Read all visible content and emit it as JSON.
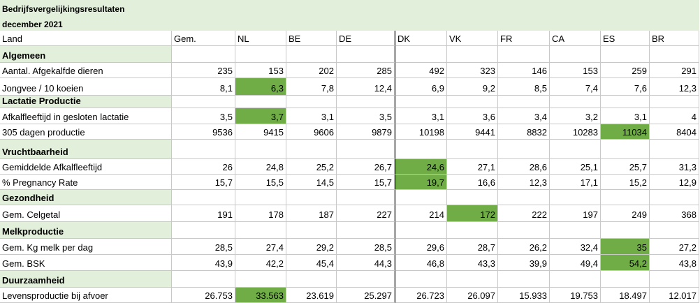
{
  "title": [
    "Bedrijfsvergelijkingsresultaten",
    "december 2021"
  ],
  "section_color": "#e2efda",
  "highlight_color": "#70ad47",
  "table": {
    "columns": [
      "Land",
      "Gem.",
      "NL",
      "BE",
      "DE",
      "DK",
      "VK",
      "FR",
      "CA",
      "ES",
      "BR"
    ],
    "rows": [
      {
        "section": "Algemeen"
      },
      {
        "label": "Aantal. Afgekalfde dieren",
        "cells": [
          "235",
          "153",
          "202",
          "285",
          "492",
          "323",
          "146",
          "153",
          "259",
          "291"
        ]
      },
      {
        "label": "Jongvee / 10 koeien",
        "cells": [
          "8,1",
          "6,3",
          "7,8",
          "12,4",
          "6,9",
          "9,2",
          "8,5",
          "7,4",
          "7,6",
          "12,3"
        ],
        "highlight": "NL"
      },
      {
        "section": "Lactatie Productie"
      },
      {
        "label": "Afkalfleeftijd in gesloten lactatie",
        "cells": [
          "3,5",
          "3,7",
          "3,1",
          "3,5",
          "3,1",
          "3,6",
          "3,4",
          "3,2",
          "3,1",
          "4"
        ],
        "highlight": "NL"
      },
      {
        "label": "305 dagen productie",
        "cells": [
          "9536",
          "9415",
          "9606",
          "9879",
          "10198",
          "9441",
          "8832",
          "10283",
          "11034",
          "8404"
        ],
        "highlight": "ES"
      },
      {
        "section": "Vruchtbaarheid"
      },
      {
        "label": "Gemiddelde Afkalfleeftijd",
        "cells": [
          "26",
          "24,8",
          "25,2",
          "26,7",
          "24,6",
          "27,1",
          "28,6",
          "25,1",
          "25,7",
          "31,3"
        ],
        "highlight": "DK"
      },
      {
        "label": "% Pregnancy Rate",
        "cells": [
          "15,7",
          "15,5",
          "14,5",
          "15,7",
          "19,7",
          "16,6",
          "12,3",
          "17,1",
          "15,2",
          "12,9"
        ],
        "highlight": "DK"
      },
      {
        "section": "Gezondheid"
      },
      {
        "label": "Gem. Celgetal",
        "cells": [
          "191",
          "178",
          "187",
          "227",
          "214",
          "172",
          "222",
          "197",
          "249",
          "368"
        ],
        "highlight": "VK"
      },
      {
        "section": "Melkproductie"
      },
      {
        "label": "Gem. Kg melk per dag",
        "cells": [
          "28,5",
          "27,4",
          "29,2",
          "28,5",
          "29,6",
          "28,7",
          "26,2",
          "32,4",
          "35",
          "27,2"
        ],
        "highlight": "ES"
      },
      {
        "label": "Gem. BSK",
        "cells": [
          "43,9",
          "42,2",
          "45,4",
          "44,3",
          "46,8",
          "43,3",
          "39,9",
          "49,4",
          "54,2",
          "43,8"
        ],
        "highlight": "ES"
      },
      {
        "section": "Duurzaamheid"
      },
      {
        "label": "Levensproductie bij afvoer",
        "cells": [
          "26.753",
          "33.563",
          "23.619",
          "25.297",
          "26.723",
          "26.097",
          "15.933",
          "19.753",
          "18.497",
          "12.017"
        ],
        "highlight": "NL"
      }
    ]
  }
}
